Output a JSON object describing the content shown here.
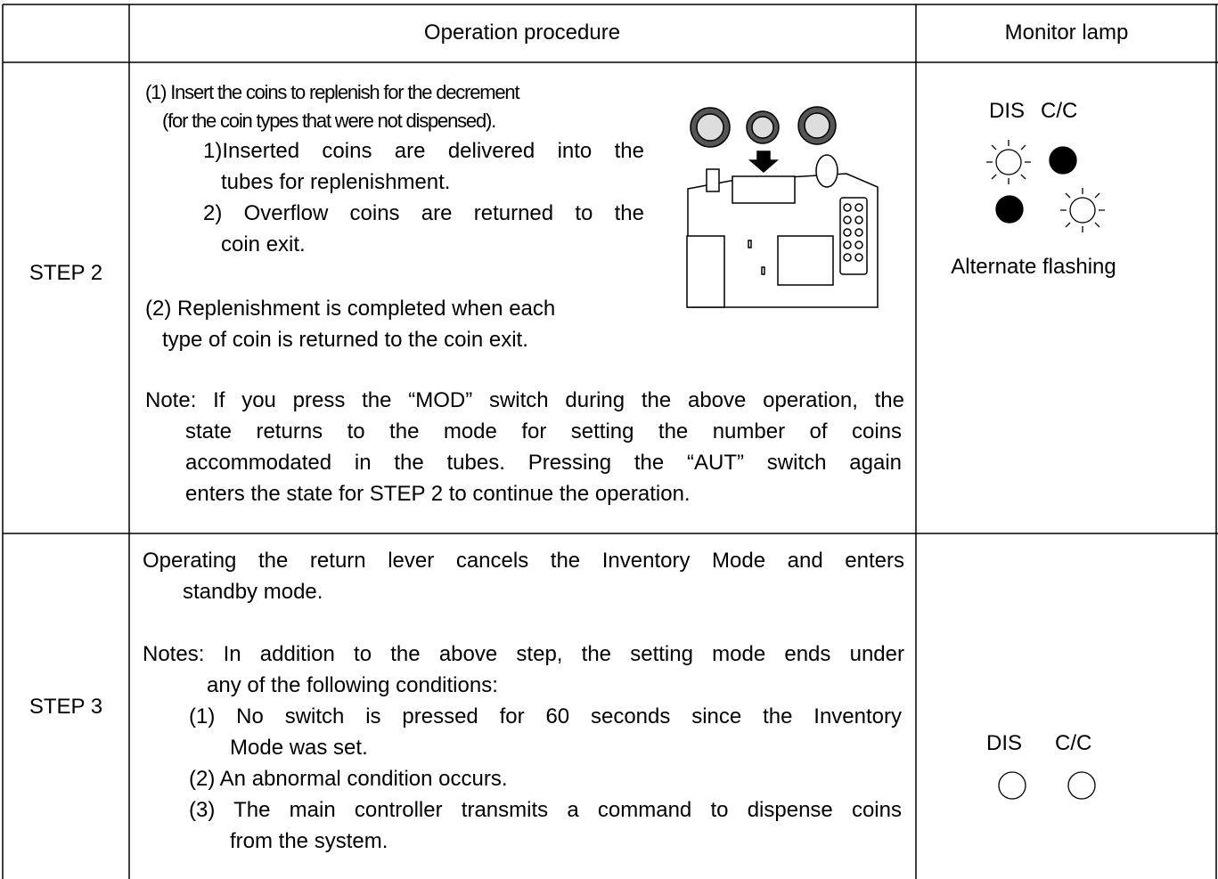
{
  "table": {
    "header": {
      "procedure": "Operation procedure",
      "monitor": "Monitor lamp"
    },
    "rows": [
      {
        "step": "STEP 2",
        "procedure_lines": [
          "(1) Insert the coins to replenish for the decrement",
          "(for the coin types that were not dispensed).",
          "1)Inserted coins are delivered into the",
          "tubes for replenishment.",
          "2) Overflow coins are returned to the",
          "coin exit.",
          "(2) Replenishment is completed when each",
          "type of coin is returned to the coin exit.",
          "Note: If you press the “MOD” switch during the above operation, the",
          "state returns to the mode for setting the number of coins",
          "accommodated in the tubes. Pressing the “AUT” switch again",
          "enters the state for STEP 2 to continue the operation."
        ],
        "lamp_labels": [
          "DIS",
          "C/C"
        ],
        "lamp_caption": "Alternate flashing"
      },
      {
        "step": "STEP 3",
        "procedure_lines": [
          "Operating the return lever cancels the Inventory Mode and enters",
          "standby mode.",
          "Notes: In addition to the above step, the setting mode ends under",
          "any of the following conditions:",
          "(1) No switch is pressed for 60 seconds since the Inventory",
          "Mode was set.",
          "(2) An abnormal condition occurs.",
          "(3) The main controller transmits a command to dispense coins",
          "from the system."
        ],
        "lamp_labels": [
          "DIS",
          "C/C"
        ]
      }
    ]
  }
}
